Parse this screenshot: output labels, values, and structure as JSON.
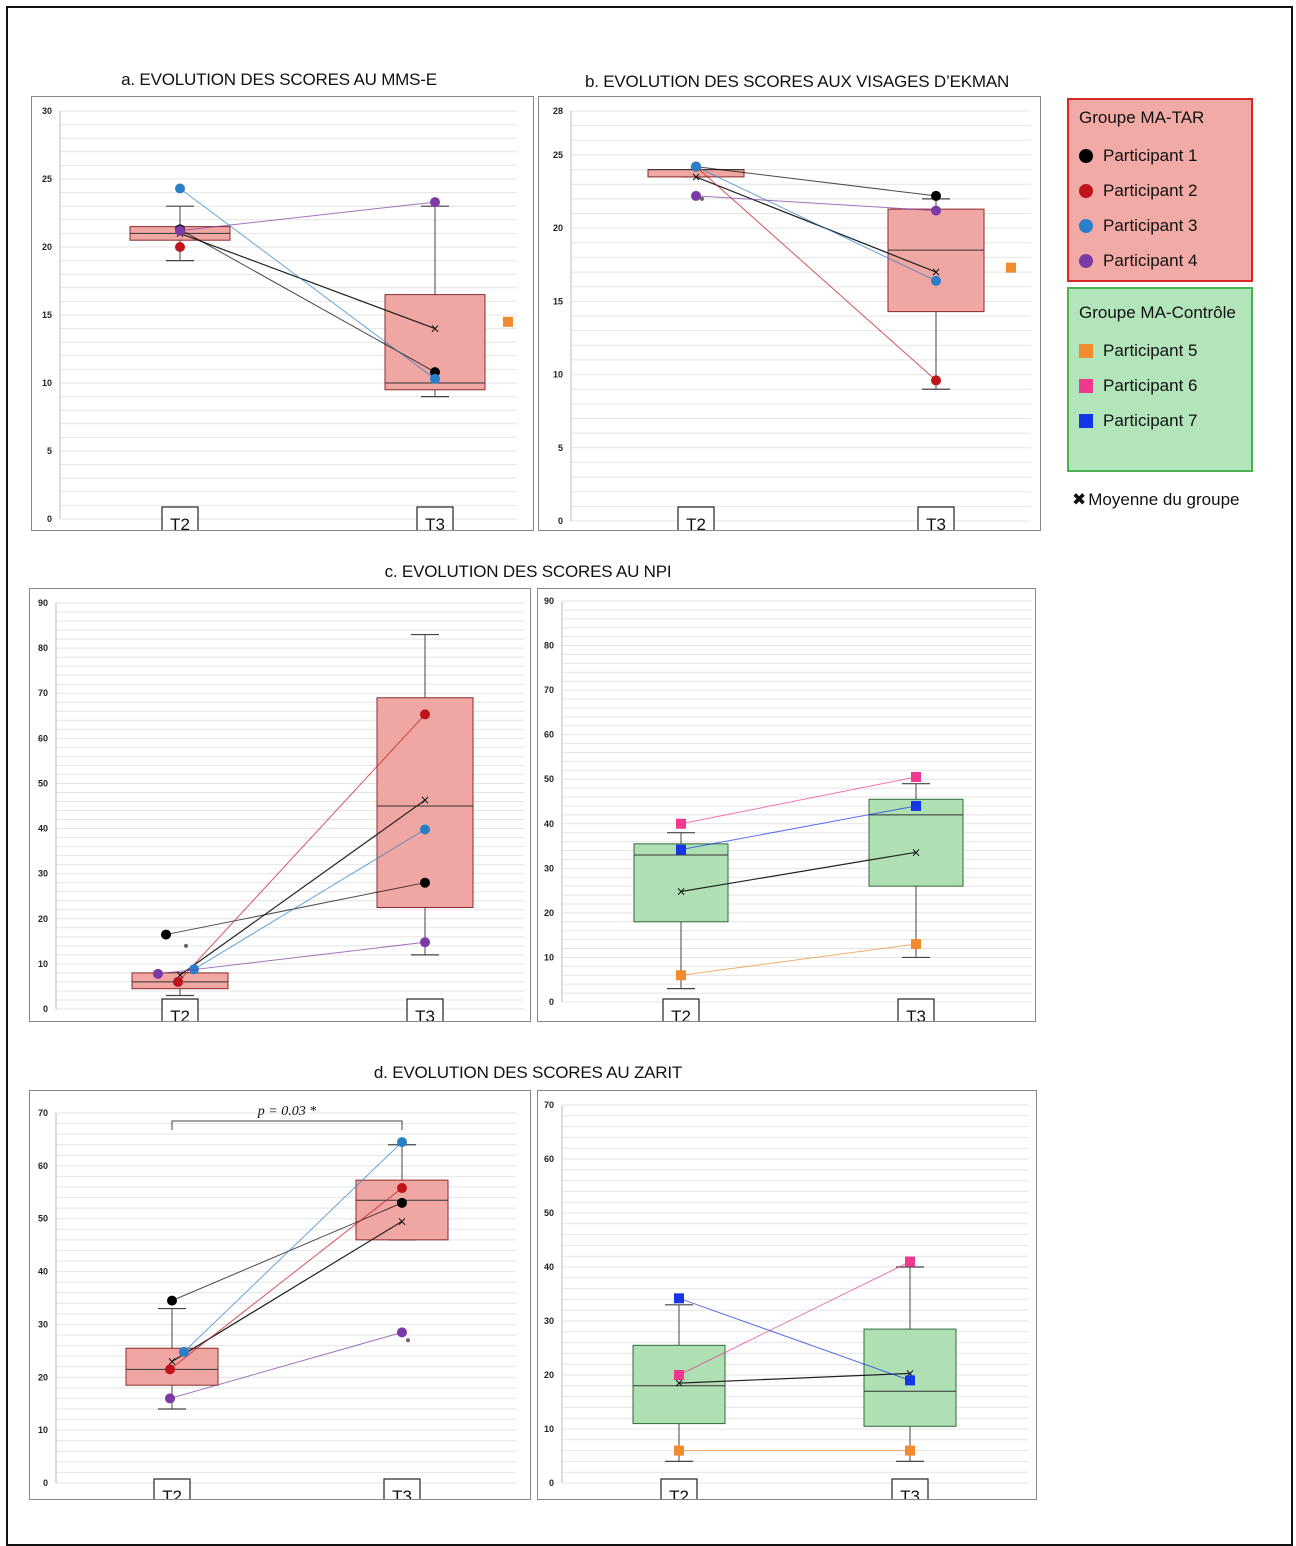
{
  "colors": {
    "participant_1": "#000000",
    "participant_2": "#c0141b",
    "participant_3": "#2a7fc9",
    "participant_4": "#7b3aa6",
    "participant_5": "#f28a2e",
    "participant_6": "#f0388f",
    "participant_7": "#1436e6",
    "tar_box_fill": "#f0a7a3",
    "tar_box_stroke": "#8b2b2b",
    "control_box_fill": "#aee0b4",
    "control_box_stroke": "#2f6b36",
    "tar_legend_bg": "#f2aaa6",
    "tar_legend_border": "#d62828",
    "control_legend_bg": "#b3e5bb",
    "control_legend_border": "#4caf50"
  },
  "titles": {
    "a": "a. EVOLUTION DES SCORES AU MMS-E",
    "b": "b. EVOLUTION DES SCORES AUX VISAGES D’EKMAN",
    "c": "c. EVOLUTION DES SCORES AU NPI",
    "d": "d. EVOLUTION DES SCORES AU ZARIT"
  },
  "legend": {
    "tar_group": {
      "title": "Groupe MA-TAR",
      "items": [
        {
          "label": "Participant 1",
          "color": "#000000",
          "marker": "circle"
        },
        {
          "label": "Participant 2",
          "color": "#c0141b",
          "marker": "circle"
        },
        {
          "label": "Participant 3",
          "color": "#2a7fc9",
          "marker": "circle"
        },
        {
          "label": "Participant 4",
          "color": "#7b3aa6",
          "marker": "circle"
        }
      ]
    },
    "control_group": {
      "title": "Groupe MA-Contrôle",
      "items": [
        {
          "label": "Participant 5",
          "color": "#f28a2e",
          "marker": "square"
        },
        {
          "label": "Participant 6",
          "color": "#f0388f",
          "marker": "square"
        },
        {
          "label": "Participant 7",
          "color": "#1436e6",
          "marker": "square"
        }
      ]
    },
    "mean_symbol": "✖",
    "mean_label": "Moyenne du groupe"
  },
  "chart_data": [
    {
      "id": "mmse",
      "type": "box",
      "group": "MA-TAR",
      "categories": [
        "T2",
        "T3"
      ],
      "yticks": [
        0,
        5,
        10,
        15,
        20,
        25,
        30
      ],
      "ylim": [
        0,
        30
      ],
      "grid": true,
      "boxes": [
        {
          "category": "T2",
          "min": 19,
          "q1": 20.5,
          "median": 21,
          "q3": 21.5,
          "max": 23,
          "mean": 21
        },
        {
          "category": "T3",
          "min": 9,
          "q1": 9.5,
          "median": 10,
          "q3": 16.5,
          "max": 23,
          "mean": 14
        }
      ],
      "series": [
        {
          "name": "Participant 1",
          "values": [
            21.3,
            10.8
          ]
        },
        {
          "name": "Participant 2",
          "values": [
            20,
            null
          ]
        },
        {
          "name": "Participant 3",
          "values": [
            24.3,
            10.3
          ]
        },
        {
          "name": "Participant 4",
          "values": [
            21.2,
            23.3
          ]
        },
        {
          "name": "Participant 5",
          "values": [
            null,
            14.5
          ]
        }
      ]
    },
    {
      "id": "ekman",
      "type": "box",
      "group": "MA-TAR",
      "categories": [
        "T2",
        "T3"
      ],
      "yticks": [
        0,
        5,
        10,
        15,
        20,
        25,
        28
      ],
      "ylim": [
        0,
        28
      ],
      "grid": true,
      "boxes": [
        {
          "category": "T2",
          "min": 23.5,
          "q1": 23.5,
          "median": 24,
          "q3": 24,
          "max": 24,
          "mean": 23.5,
          "outliers": [
            22
          ]
        },
        {
          "category": "T3",
          "min": 9,
          "q1": 14.3,
          "median": 18.5,
          "q3": 21.3,
          "max": 22,
          "mean": 17
        }
      ],
      "series": [
        {
          "name": "Participant 1",
          "values": [
            24.2,
            22.2
          ]
        },
        {
          "name": "Participant 2",
          "values": [
            24.2,
            9.6
          ]
        },
        {
          "name": "Participant 3",
          "values": [
            24.2,
            16.4
          ]
        },
        {
          "name": "Participant 4",
          "values": [
            22.2,
            21.2
          ]
        },
        {
          "name": "Participant 5",
          "values": [
            null,
            17.3
          ]
        }
      ]
    },
    {
      "id": "npi_tar",
      "type": "box",
      "group": "MA-TAR",
      "categories": [
        "T2",
        "T3"
      ],
      "yticks": [
        0,
        10,
        20,
        30,
        40,
        50,
        60,
        70,
        80,
        90
      ],
      "ylim": [
        0,
        90
      ],
      "grid": true,
      "boxes": [
        {
          "category": "T2",
          "min": 3,
          "q1": 4.5,
          "median": 6,
          "q3": 8,
          "max": 8,
          "mean": 7.5,
          "outliers": [
            14
          ]
        },
        {
          "category": "T3",
          "min": 12,
          "q1": 22.5,
          "median": 45,
          "q3": 69,
          "max": 83,
          "mean": 46.3
        }
      ],
      "series": [
        {
          "name": "Participant 1",
          "values": [
            16.5,
            28
          ]
        },
        {
          "name": "Participant 2",
          "values": [
            6,
            65.3
          ]
        },
        {
          "name": "Participant 3",
          "values": [
            8.8,
            39.8
          ]
        },
        {
          "name": "Participant 4",
          "values": [
            7.8,
            14.8
          ]
        }
      ]
    },
    {
      "id": "npi_control",
      "type": "box",
      "group": "MA-Contrôle",
      "categories": [
        "T2",
        "T3"
      ],
      "yticks": [
        0,
        10,
        20,
        30,
        40,
        50,
        60,
        70,
        80,
        90
      ],
      "ylim": [
        0,
        90
      ],
      "grid": true,
      "boxes": [
        {
          "category": "T2",
          "min": 3,
          "q1": 18,
          "median": 33,
          "q3": 35.5,
          "max": 38,
          "mean": 24.8
        },
        {
          "category": "T3",
          "min": 10,
          "q1": 26,
          "median": 42,
          "q3": 45.5,
          "max": 49,
          "mean": 33.6
        }
      ],
      "series": [
        {
          "name": "Participant 5",
          "values": [
            6,
            13
          ]
        },
        {
          "name": "Participant 6",
          "values": [
            40,
            50.5
          ]
        },
        {
          "name": "Participant 7",
          "values": [
            34.2,
            44
          ]
        }
      ]
    },
    {
      "id": "zarit_tar",
      "type": "box",
      "group": "MA-TAR",
      "categories": [
        "T2",
        "T3"
      ],
      "yticks": [
        0,
        10,
        20,
        30,
        40,
        50,
        60,
        70
      ],
      "ylim": [
        0,
        70
      ],
      "grid": true,
      "boxes": [
        {
          "category": "T2",
          "min": 14,
          "q1": 18.5,
          "median": 21.5,
          "q3": 25.5,
          "max": 33,
          "mean": 23
        },
        {
          "category": "T3",
          "min": 46,
          "q1": 46,
          "median": 53.5,
          "q3": 57.3,
          "max": 64,
          "mean": 49.5,
          "outliers": [
            27
          ]
        }
      ],
      "series": [
        {
          "name": "Participant 1",
          "values": [
            34.5,
            53
          ]
        },
        {
          "name": "Participant 2",
          "values": [
            21.5,
            55.8
          ]
        },
        {
          "name": "Participant 3",
          "values": [
            24.8,
            64.5
          ]
        },
        {
          "name": "Participant 4",
          "values": [
            16,
            28.5
          ]
        }
      ],
      "annotation": "p = 0.03 *"
    },
    {
      "id": "zarit_control",
      "type": "box",
      "group": "MA-Contrôle",
      "categories": [
        "T2",
        "T3"
      ],
      "yticks": [
        0,
        10,
        20,
        30,
        40,
        50,
        60,
        70
      ],
      "ylim": [
        0,
        70
      ],
      "grid": true,
      "boxes": [
        {
          "category": "T2",
          "min": 4,
          "q1": 11,
          "median": 18,
          "q3": 25.5,
          "max": 33,
          "mean": 18.5
        },
        {
          "category": "T3",
          "min": 4,
          "q1": 10.5,
          "median": 17,
          "q3": 28.5,
          "max": 40,
          "mean": 20.3
        }
      ],
      "series": [
        {
          "name": "Participant 5",
          "values": [
            6,
            6
          ]
        },
        {
          "name": "Participant 6",
          "values": [
            20,
            41
          ]
        },
        {
          "name": "Participant 7",
          "values": [
            34.2,
            19
          ]
        }
      ]
    }
  ]
}
